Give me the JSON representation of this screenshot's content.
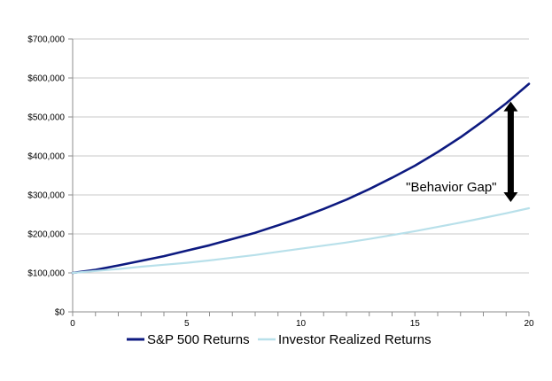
{
  "chart_data": {
    "type": "line",
    "title": "",
    "xlabel": "",
    "ylabel": "",
    "x": [
      0,
      1,
      2,
      3,
      4,
      5,
      6,
      7,
      8,
      9,
      10,
      11,
      12,
      13,
      14,
      15,
      16,
      17,
      18,
      19,
      20
    ],
    "xlim": [
      0,
      20
    ],
    "ylim": [
      0,
      700000
    ],
    "x_ticks": [
      0,
      5,
      10,
      15,
      20
    ],
    "x_tick_labels": [
      "0",
      "5",
      "10",
      "15",
      "20"
    ],
    "y_ticks": [
      0,
      100000,
      200000,
      300000,
      400000,
      500000,
      600000,
      700000
    ],
    "y_tick_labels": [
      "$0",
      "$100,000",
      "$200,000",
      "$300,000",
      "$400,000",
      "$500,000",
      "$600,000",
      "$700,000"
    ],
    "grid": "horizontal",
    "legend_position": "bottom",
    "series": [
      {
        "name": "S&P 500 Returns",
        "color": "#0d1a80",
        "values": [
          100000,
          108000,
          119000,
          131000,
          143000,
          157000,
          171000,
          187000,
          203000,
          222000,
          242000,
          264000,
          288000,
          315000,
          344000,
          375000,
          410000,
          448000,
          490000,
          535000,
          585000
        ]
      },
      {
        "name": "Investor Realized Returns",
        "color": "#b8e0ea",
        "values": [
          100000,
          105000,
          110000,
          116000,
          121000,
          126000,
          132000,
          139000,
          146000,
          154000,
          162000,
          170000,
          178000,
          187000,
          197000,
          207000,
          218000,
          229000,
          241000,
          253000,
          266000
        ]
      }
    ],
    "annotations": [
      {
        "text": "\"Behavior Gap\"",
        "x": 18,
        "y": 320000
      }
    ],
    "gap_arrow": {
      "x": 19.2,
      "y_from": 266000,
      "y_to": 535000
    }
  }
}
